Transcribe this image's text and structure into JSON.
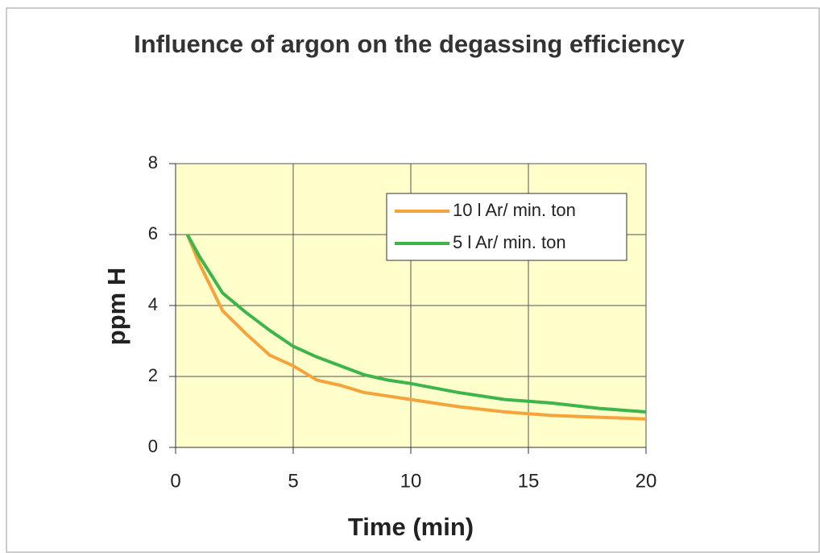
{
  "chart_data": {
    "type": "line",
    "title": "Influence of argon on the degassing efficiency",
    "x_label": "Time (min)",
    "y_label": "ppm H",
    "x": [
      0.5,
      1,
      2,
      3,
      4,
      5,
      6,
      7,
      8,
      9,
      10,
      12,
      14,
      15,
      16,
      18,
      20
    ],
    "series": [
      {
        "name": "10 l Ar/ min. ton",
        "color": "#f5a33a",
        "values": [
          6.0,
          5.2,
          3.85,
          3.2,
          2.6,
          2.3,
          1.9,
          1.75,
          1.55,
          1.45,
          1.35,
          1.15,
          1.0,
          0.95,
          0.9,
          0.85,
          0.8
        ]
      },
      {
        "name": "5 l Ar/ min. ton",
        "color": "#3cb54a",
        "values": [
          6.0,
          5.4,
          4.35,
          3.8,
          3.3,
          2.85,
          2.55,
          2.3,
          2.05,
          1.9,
          1.8,
          1.55,
          1.35,
          1.3,
          1.25,
          1.1,
          1.0
        ]
      }
    ],
    "xlim": [
      0,
      20
    ],
    "xticks": [
      0,
      5,
      10,
      15,
      20
    ],
    "ylim": [
      0,
      8
    ],
    "yticks": [
      0,
      2,
      4,
      6,
      8
    ],
    "grid": true,
    "legend": "upper right",
    "plot_background": "#ffffcc"
  }
}
